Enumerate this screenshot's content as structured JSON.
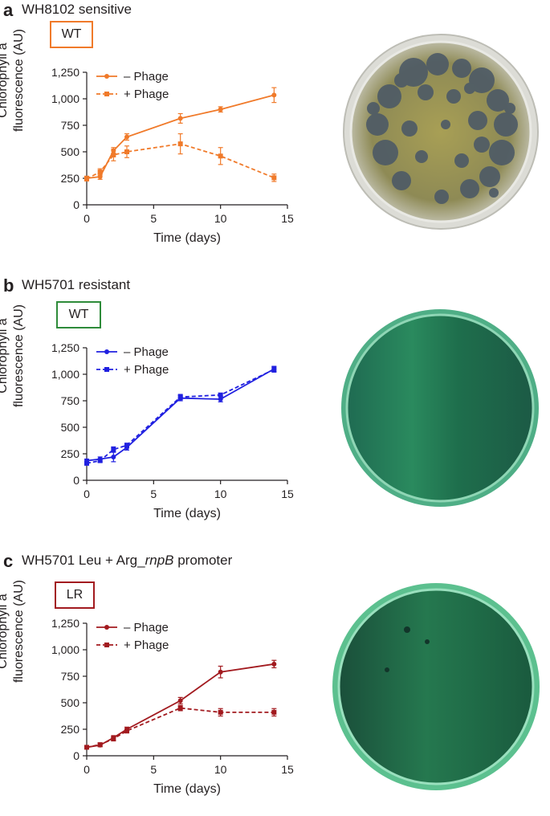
{
  "colors": {
    "panel_a": "#f07a2a",
    "panel_b": "#2020e0",
    "panel_c": "#a21a1f",
    "axis": "#231f20"
  },
  "panels": [
    {
      "letter": "a",
      "title": "WH8102 sensitive",
      "strain_label": "WT",
      "plate_image": "petri-dish-with-plaques"
    },
    {
      "letter": "b",
      "title": "WH5701 resistant",
      "strain_label": "WT",
      "plate_image": "petri-dish-green-lawn"
    },
    {
      "letter": "c",
      "title_pre": "WH5701 Leu + Arg_",
      "title_italic": "rnpB",
      "title_post": " promoter",
      "strain_label": "LR",
      "plate_image": "petri-dish-green-lawn-few-plaques"
    }
  ],
  "chart_data": [
    {
      "type": "line",
      "xlabel": "Time (days)",
      "ylabel_line1": "Chlorophyll a",
      "ylabel_line2": "fluorescence (AU)",
      "xlim": [
        0,
        15
      ],
      "ylim": [
        0,
        1250
      ],
      "xticks": [
        "0",
        "5",
        "10",
        "15"
      ],
      "yticks": [
        "0",
        "250",
        "500",
        "750",
        "1,000",
        "1,250"
      ],
      "legend_position": "top-left",
      "series": [
        {
          "name": "– Phage",
          "style": "solid",
          "marker": "circle",
          "x": [
            0,
            1,
            2,
            3,
            7,
            10,
            14
          ],
          "y": [
            250,
            265,
            510,
            640,
            815,
            900,
            1035
          ],
          "err": [
            20,
            25,
            30,
            30,
            45,
            25,
            70
          ]
        },
        {
          "name": "+ Phage",
          "style": "dashed",
          "marker": "square",
          "x": [
            0,
            1,
            2,
            3,
            7,
            10,
            14
          ],
          "y": [
            245,
            310,
            470,
            500,
            575,
            460,
            255
          ],
          "err": [
            20,
            30,
            55,
            55,
            95,
            80,
            35
          ]
        }
      ]
    },
    {
      "type": "line",
      "xlabel": "Time (days)",
      "ylabel_line1": "Chlorophyll a",
      "ylabel_line2": "fluorescence (AU)",
      "xlim": [
        0,
        15
      ],
      "ylim": [
        0,
        1250
      ],
      "xticks": [
        "0",
        "5",
        "10",
        "15"
      ],
      "yticks": [
        "0",
        "250",
        "500",
        "750",
        "1,000",
        "1,250"
      ],
      "legend_position": "top-left",
      "series": [
        {
          "name": "– Phage",
          "style": "solid",
          "marker": "circle",
          "x": [
            0,
            1,
            2,
            3,
            7,
            10,
            14
          ],
          "y": [
            185,
            200,
            220,
            310,
            775,
            765,
            1050
          ],
          "err": [
            15,
            20,
            45,
            25,
            25,
            25,
            25
          ]
        },
        {
          "name": "+ Phage",
          "style": "dashed",
          "marker": "square",
          "x": [
            0,
            1,
            2,
            3,
            7,
            10,
            14
          ],
          "y": [
            160,
            185,
            290,
            330,
            785,
            805,
            1045
          ],
          "err": [
            15,
            15,
            25,
            20,
            25,
            15,
            25
          ]
        }
      ]
    },
    {
      "type": "line",
      "xlabel": "Time (days)",
      "ylabel_line1": "Chlorophyll a",
      "ylabel_line2": "fluorescence (AU)",
      "xlim": [
        0,
        15
      ],
      "ylim": [
        0,
        1250
      ],
      "xticks": [
        "0",
        "5",
        "10",
        "15"
      ],
      "yticks": [
        "0",
        "250",
        "500",
        "750",
        "1,000",
        "1,250"
      ],
      "legend_position": "top-left",
      "series": [
        {
          "name": "– Phage",
          "style": "solid",
          "marker": "circle",
          "x": [
            0,
            1,
            2,
            3,
            7,
            10,
            14
          ],
          "y": [
            80,
            100,
            170,
            250,
            520,
            790,
            865
          ],
          "err": [
            10,
            15,
            20,
            20,
            30,
            55,
            35
          ]
        },
        {
          "name": "+ Phage",
          "style": "dashed",
          "marker": "square",
          "x": [
            0,
            1,
            2,
            3,
            7,
            10,
            14
          ],
          "y": [
            80,
            105,
            160,
            235,
            450,
            410,
            410
          ],
          "err": [
            10,
            15,
            20,
            20,
            25,
            35,
            35
          ]
        }
      ]
    }
  ]
}
